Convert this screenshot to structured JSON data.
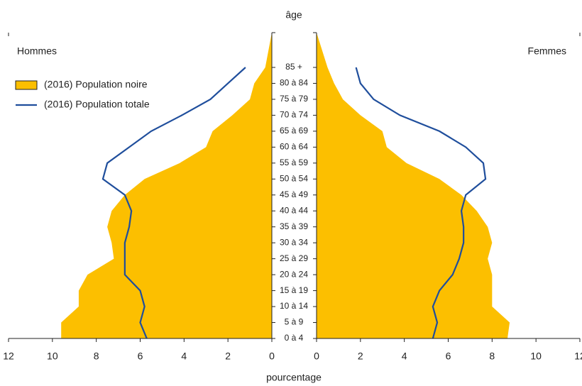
{
  "chart_data": {
    "type": "pyramid",
    "title": "âge",
    "x_title": "pourcentage",
    "categories": [
      "0 à 4",
      "5 à 9",
      "10 à 14",
      "15 à 19",
      "20 à 24",
      "25 à 29",
      "30 à 34",
      "35 à 39",
      "40 à 44",
      "45 à 49",
      "50 à 54",
      "55 à 59",
      "60 à 64",
      "65 à 69",
      "70 à 74",
      "75 à 79",
      "80 à 84",
      "85 +"
    ],
    "panels": [
      {
        "title": "Hommes",
        "key": "hommes",
        "side": "left"
      },
      {
        "title": "Femmes",
        "key": "femmes",
        "side": "right"
      }
    ],
    "series": [
      {
        "name": "(2016) Population noire",
        "color": "#fcbf00",
        "style": "area",
        "hommes": [
          9.6,
          9.6,
          8.8,
          8.8,
          8.4,
          7.2,
          7.3,
          7.5,
          7.3,
          6.7,
          5.8,
          4.2,
          3.0,
          2.7,
          1.8,
          1.0,
          0.8,
          0.3
        ],
        "femmes": [
          8.7,
          8.8,
          8.0,
          8.0,
          8.0,
          7.8,
          8.0,
          7.8,
          7.3,
          6.6,
          5.6,
          4.1,
          3.2,
          3.0,
          2.0,
          1.2,
          0.8,
          0.5
        ]
      },
      {
        "name": "(2016) Population totale",
        "color": "#1f4e9c",
        "style": "line",
        "hommes": [
          5.7,
          6.0,
          5.8,
          6.0,
          6.7,
          6.7,
          6.7,
          6.5,
          6.4,
          6.7,
          7.7,
          7.5,
          6.5,
          5.5,
          4.1,
          2.8,
          2.0,
          1.2
        ],
        "femmes": [
          5.3,
          5.5,
          5.3,
          5.6,
          6.2,
          6.5,
          6.7,
          6.7,
          6.6,
          6.8,
          7.7,
          7.6,
          6.8,
          5.6,
          3.8,
          2.6,
          2.0,
          1.8
        ]
      }
    ],
    "xlim": [
      0,
      12
    ],
    "xticks": [
      0,
      2,
      4,
      6,
      8,
      10,
      12
    ]
  }
}
